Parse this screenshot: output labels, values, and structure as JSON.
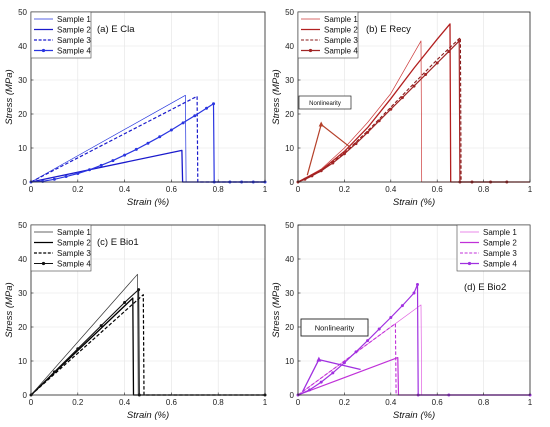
{
  "chart_data": [
    {
      "type": "line",
      "panel_label": "(a) E Cla",
      "xlabel": "Strain (%)",
      "ylabel": "Stress (MPa)",
      "xlim": [
        0,
        1
      ],
      "ylim": [
        0,
        50
      ],
      "xticks": [
        "0",
        "0.2",
        "0.4",
        "0.6",
        "0.8",
        "1"
      ],
      "yticks": [
        "0",
        "10",
        "20",
        "30",
        "40",
        "50"
      ],
      "grid": true,
      "legend_position": "top-left",
      "series": [
        {
          "name": "Sample 1",
          "color": "#2233dd",
          "dash": "solid",
          "width": 0.7,
          "marker": false,
          "points": [
            [
              0,
              0
            ],
            [
              0.66,
              25.5
            ],
            [
              0.663,
              0
            ],
            [
              1,
              0
            ]
          ]
        },
        {
          "name": "Sample 2",
          "color": "#1a1acc",
          "dash": "solid",
          "width": 1.3,
          "marker": false,
          "points": [
            [
              0,
              0
            ],
            [
              0.645,
              9.3
            ],
            [
              0.648,
              0
            ],
            [
              1,
              0
            ]
          ]
        },
        {
          "name": "Sample 3",
          "color": "#1a1acc",
          "dash": "dashed",
          "width": 1.2,
          "marker": false,
          "points": [
            [
              0,
              0
            ],
            [
              0.71,
              25.2
            ],
            [
              0.713,
              0
            ],
            [
              1,
              0
            ]
          ]
        },
        {
          "name": "Sample 4",
          "color": "#2a35e0",
          "dash": "solid",
          "width": 1.2,
          "marker": true,
          "points": [
            [
              0,
              0
            ],
            [
              0.05,
              0.2
            ],
            [
              0.1,
              0.8
            ],
            [
              0.15,
              1.6
            ],
            [
              0.2,
              2.5
            ],
            [
              0.25,
              3.6
            ],
            [
              0.3,
              4.9
            ],
            [
              0.35,
              6.3
            ],
            [
              0.4,
              7.9
            ],
            [
              0.45,
              9.6
            ],
            [
              0.5,
              11.4
            ],
            [
              0.55,
              13.3
            ],
            [
              0.6,
              15.3
            ],
            [
              0.65,
              17.4
            ],
            [
              0.7,
              19.5
            ],
            [
              0.75,
              21.7
            ],
            [
              0.78,
              23.0
            ],
            [
              0.783,
              0
            ],
            [
              0.85,
              0
            ],
            [
              0.9,
              0
            ],
            [
              0.95,
              0
            ],
            [
              1,
              0
            ]
          ]
        }
      ]
    },
    {
      "type": "line",
      "panel_label": "(b) E Recy",
      "xlabel": "Strain (%)",
      "ylabel": "Stress (MPa)",
      "xlim": [
        0,
        1
      ],
      "ylim": [
        0,
        50
      ],
      "xticks": [
        "0",
        "0.2",
        "0.4",
        "0.6",
        "0.8",
        "1"
      ],
      "yticks": [
        "0",
        "10",
        "20",
        "30",
        "40",
        "50"
      ],
      "grid": true,
      "legend_position": "top-left",
      "annotation": "Nonlinearity",
      "series": [
        {
          "name": "Sample 1",
          "color": "#cc3a3a",
          "dash": "solid",
          "width": 0.7,
          "marker": false,
          "points": [
            [
              0,
              0
            ],
            [
              0.1,
              3.8
            ],
            [
              0.2,
              10.0
            ],
            [
              0.3,
              17.5
            ],
            [
              0.4,
              26.0
            ],
            [
              0.53,
              41.5
            ],
            [
              0.533,
              0
            ],
            [
              1,
              0
            ]
          ]
        },
        {
          "name": "Sample 2",
          "color": "#b22020",
          "dash": "solid",
          "width": 1.3,
          "marker": false,
          "points": [
            [
              0,
              0
            ],
            [
              0.1,
              3.5
            ],
            [
              0.2,
              9.0
            ],
            [
              0.3,
              16.0
            ],
            [
              0.4,
              24.5
            ],
            [
              0.5,
              33.5
            ],
            [
              0.6,
              42.0
            ],
            [
              0.655,
              46.5
            ],
            [
              0.658,
              0
            ],
            [
              1,
              0
            ]
          ]
        },
        {
          "name": "Sample 3",
          "color": "#8a1a1a",
          "dash": "dashed",
          "width": 1.1,
          "marker": false,
          "points": [
            [
              0,
              0
            ],
            [
              0.1,
              3.2
            ],
            [
              0.2,
              8.5
            ],
            [
              0.3,
              15.0
            ],
            [
              0.4,
              22.0
            ],
            [
              0.5,
              29.0
            ],
            [
              0.6,
              36.0
            ],
            [
              0.7,
              42.5
            ],
            [
              0.703,
              0
            ],
            [
              1,
              0
            ]
          ]
        },
        {
          "name": "Sample 4",
          "color": "#a02525",
          "dash": "solid",
          "width": 1.2,
          "marker": true,
          "points": [
            [
              0,
              0
            ],
            [
              0.03,
              0.8
            ],
            [
              0.06,
              1.8
            ],
            [
              0.1,
              3.3
            ],
            [
              0.15,
              5.6
            ],
            [
              0.2,
              8.3
            ],
            [
              0.25,
              11.3
            ],
            [
              0.3,
              14.6
            ],
            [
              0.35,
              18.0
            ],
            [
              0.4,
              21.4
            ],
            [
              0.45,
              24.8
            ],
            [
              0.5,
              28.2
            ],
            [
              0.55,
              31.6
            ],
            [
              0.6,
              35.0
            ],
            [
              0.65,
              38.4
            ],
            [
              0.695,
              41.5
            ],
            [
              0.698,
              0
            ],
            [
              0.75,
              0
            ],
            [
              0.83,
              0
            ],
            [
              0.9,
              0
            ]
          ]
        }
      ]
    },
    {
      "type": "line",
      "panel_label": "(c) E Bio1",
      "xlabel": "Strain (%)",
      "ylabel": "Stress (MPa)",
      "xlim": [
        0,
        1
      ],
      "ylim": [
        0,
        50
      ],
      "xticks": [
        "0",
        "0.2",
        "0.4",
        "0.6",
        "0.8",
        "1"
      ],
      "yticks": [
        "0",
        "10",
        "20",
        "30",
        "40",
        "50"
      ],
      "grid": true,
      "legend_position": "top-left",
      "series": [
        {
          "name": "Sample 1",
          "color": "#333333",
          "dash": "solid",
          "width": 0.7,
          "marker": false,
          "points": [
            [
              0,
              0
            ],
            [
              0.455,
              35.5
            ],
            [
              0.458,
              0
            ],
            [
              1,
              0
            ]
          ]
        },
        {
          "name": "Sample 2",
          "color": "#000000",
          "dash": "solid",
          "width": 1.3,
          "marker": false,
          "points": [
            [
              0,
              0
            ],
            [
              0.435,
              28.5
            ],
            [
              0.438,
              0
            ],
            [
              1,
              0
            ]
          ]
        },
        {
          "name": "Sample 3",
          "color": "#000000",
          "dash": "dashed",
          "width": 1.2,
          "marker": false,
          "points": [
            [
              0,
              0
            ],
            [
              0.48,
              29.5
            ],
            [
              0.483,
              0
            ],
            [
              1,
              0
            ]
          ]
        },
        {
          "name": "Sample 4",
          "color": "#111111",
          "dash": "solid",
          "width": 1.1,
          "marker": true,
          "points": [
            [
              0,
              0
            ],
            [
              0.1,
              6.8
            ],
            [
              0.2,
              13.6
            ],
            [
              0.3,
              20.4
            ],
            [
              0.4,
              27.2
            ],
            [
              0.46,
              31.0
            ],
            [
              0.463,
              0
            ],
            [
              1,
              0
            ]
          ]
        }
      ]
    },
    {
      "type": "line",
      "panel_label": "(d) E Bio2",
      "xlabel": "Strain (%)",
      "ylabel": "Stress (MPa)",
      "xlim": [
        0,
        1
      ],
      "ylim": [
        0,
        50
      ],
      "xticks": [
        "0",
        "0.2",
        "0.4",
        "0.6",
        "0.8",
        "1"
      ],
      "yticks": [
        "0",
        "10",
        "20",
        "30",
        "40",
        "50"
      ],
      "grid": true,
      "legend_position": "top-right",
      "annotation": "Nonlinearity",
      "series": [
        {
          "name": "Sample 1",
          "color": "#e060e0",
          "dash": "solid",
          "width": 0.7,
          "marker": false,
          "points": [
            [
              0,
              0
            ],
            [
              0.53,
              26.5
            ],
            [
              0.533,
              0
            ],
            [
              1,
              0
            ]
          ]
        },
        {
          "name": "Sample 2",
          "color": "#c030d8",
          "dash": "solid",
          "width": 1.2,
          "marker": false,
          "points": [
            [
              0,
              0
            ],
            [
              0.43,
              11.0
            ],
            [
              0.433,
              0
            ],
            [
              1,
              0
            ]
          ]
        },
        {
          "name": "Sample 3",
          "color": "#c030d8",
          "dash": "dashed",
          "width": 1.1,
          "marker": false,
          "points": [
            [
              0,
              0
            ],
            [
              0.42,
              21.0
            ],
            [
              0.423,
              0
            ],
            [
              1,
              0
            ]
          ]
        },
        {
          "name": "Sample 4",
          "color": "#a030e0",
          "dash": "solid",
          "width": 1.2,
          "marker": true,
          "points": [
            [
              0,
              0
            ],
            [
              0.05,
              1.5
            ],
            [
              0.1,
              3.8
            ],
            [
              0.15,
              6.5
            ],
            [
              0.2,
              9.5
            ],
            [
              0.25,
              12.7
            ],
            [
              0.3,
              16.0
            ],
            [
              0.35,
              19.4
            ],
            [
              0.4,
              22.8
            ],
            [
              0.45,
              26.3
            ],
            [
              0.5,
              30.0
            ],
            [
              0.515,
              32.5
            ],
            [
              0.518,
              0
            ],
            [
              0.65,
              0
            ],
            [
              1,
              0
            ]
          ]
        }
      ]
    }
  ]
}
